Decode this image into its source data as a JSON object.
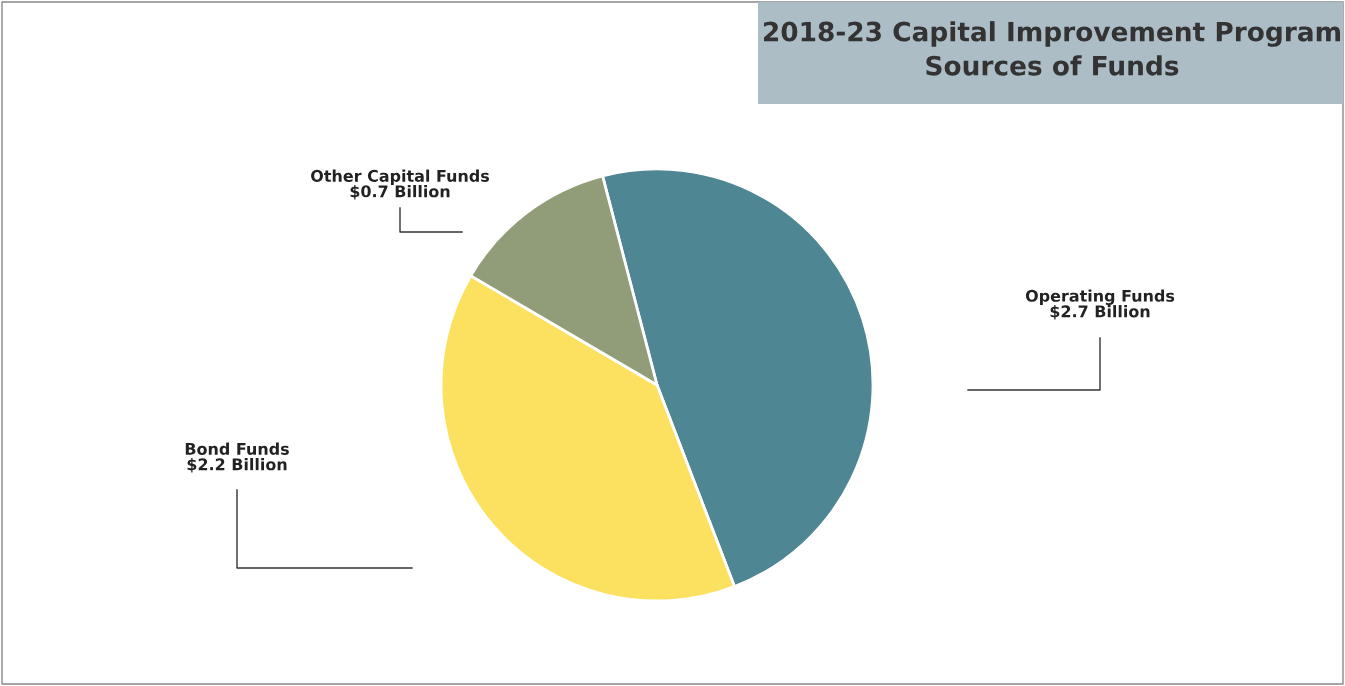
{
  "chart_data": {
    "type": "pie",
    "title": "2018-23 Capital Improvement Program",
    "subtitle": "Sources of Funds",
    "categories": [
      "Operating Funds",
      "Bond Funds",
      "Other Capital Funds"
    ],
    "values": [
      2.7,
      2.2,
      0.7
    ],
    "value_labels": [
      "$2.7 Billion",
      "$2.2 Billion",
      "$0.7 Billion"
    ],
    "colors": [
      "#4e8693",
      "#fce160",
      "#919c78"
    ]
  }
}
